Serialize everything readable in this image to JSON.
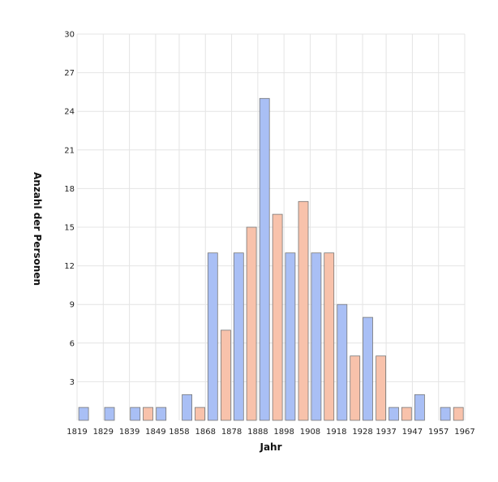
{
  "chart_data": {
    "type": "bar",
    "title": "",
    "xlabel": "Jahr",
    "ylabel": "Anzahl der Personen",
    "ylim": [
      0,
      30
    ],
    "yticks": [
      3,
      6,
      9,
      12,
      15,
      18,
      21,
      24,
      27,
      30
    ],
    "xlim": [
      1819,
      1967
    ],
    "xticks": [
      1819,
      1829,
      1839,
      1849,
      1858,
      1868,
      1878,
      1888,
      1898,
      1908,
      1918,
      1928,
      1937,
      1947,
      1957,
      1967
    ],
    "grid": true,
    "legend": "none",
    "colors": {
      "blue": "#a9bff5",
      "orange": "#f8c2ab",
      "bar_stroke": "#777777",
      "grid": "#e4e4e4"
    },
    "bars": [
      {
        "x": 1821.5,
        "value": 1,
        "color": "blue"
      },
      {
        "x": 1831.4,
        "value": 1,
        "color": "blue"
      },
      {
        "x": 1841.2,
        "value": 1,
        "color": "blue"
      },
      {
        "x": 1846.1,
        "value": 1,
        "color": "orange"
      },
      {
        "x": 1851.1,
        "value": 1,
        "color": "blue"
      },
      {
        "x": 1861.0,
        "value": 2,
        "color": "blue"
      },
      {
        "x": 1865.9,
        "value": 1,
        "color": "orange"
      },
      {
        "x": 1870.8,
        "value": 13,
        "color": "blue"
      },
      {
        "x": 1875.8,
        "value": 7,
        "color": "orange"
      },
      {
        "x": 1880.7,
        "value": 13,
        "color": "blue"
      },
      {
        "x": 1885.6,
        "value": 15,
        "color": "orange"
      },
      {
        "x": 1890.6,
        "value": 25,
        "color": "blue"
      },
      {
        "x": 1895.5,
        "value": 16,
        "color": "orange"
      },
      {
        "x": 1900.4,
        "value": 13,
        "color": "blue"
      },
      {
        "x": 1905.4,
        "value": 17,
        "color": "orange"
      },
      {
        "x": 1910.3,
        "value": 13,
        "color": "blue"
      },
      {
        "x": 1915.2,
        "value": 13,
        "color": "orange"
      },
      {
        "x": 1920.2,
        "value": 9,
        "color": "blue"
      },
      {
        "x": 1925.1,
        "value": 5,
        "color": "orange"
      },
      {
        "x": 1930.0,
        "value": 8,
        "color": "blue"
      },
      {
        "x": 1935.0,
        "value": 5,
        "color": "orange"
      },
      {
        "x": 1939.9,
        "value": 1,
        "color": "blue"
      },
      {
        "x": 1944.8,
        "value": 1,
        "color": "orange"
      },
      {
        "x": 1949.8,
        "value": 2,
        "color": "blue"
      },
      {
        "x": 1959.6,
        "value": 1,
        "color": "blue"
      },
      {
        "x": 1964.6,
        "value": 1,
        "color": "orange"
      }
    ]
  }
}
